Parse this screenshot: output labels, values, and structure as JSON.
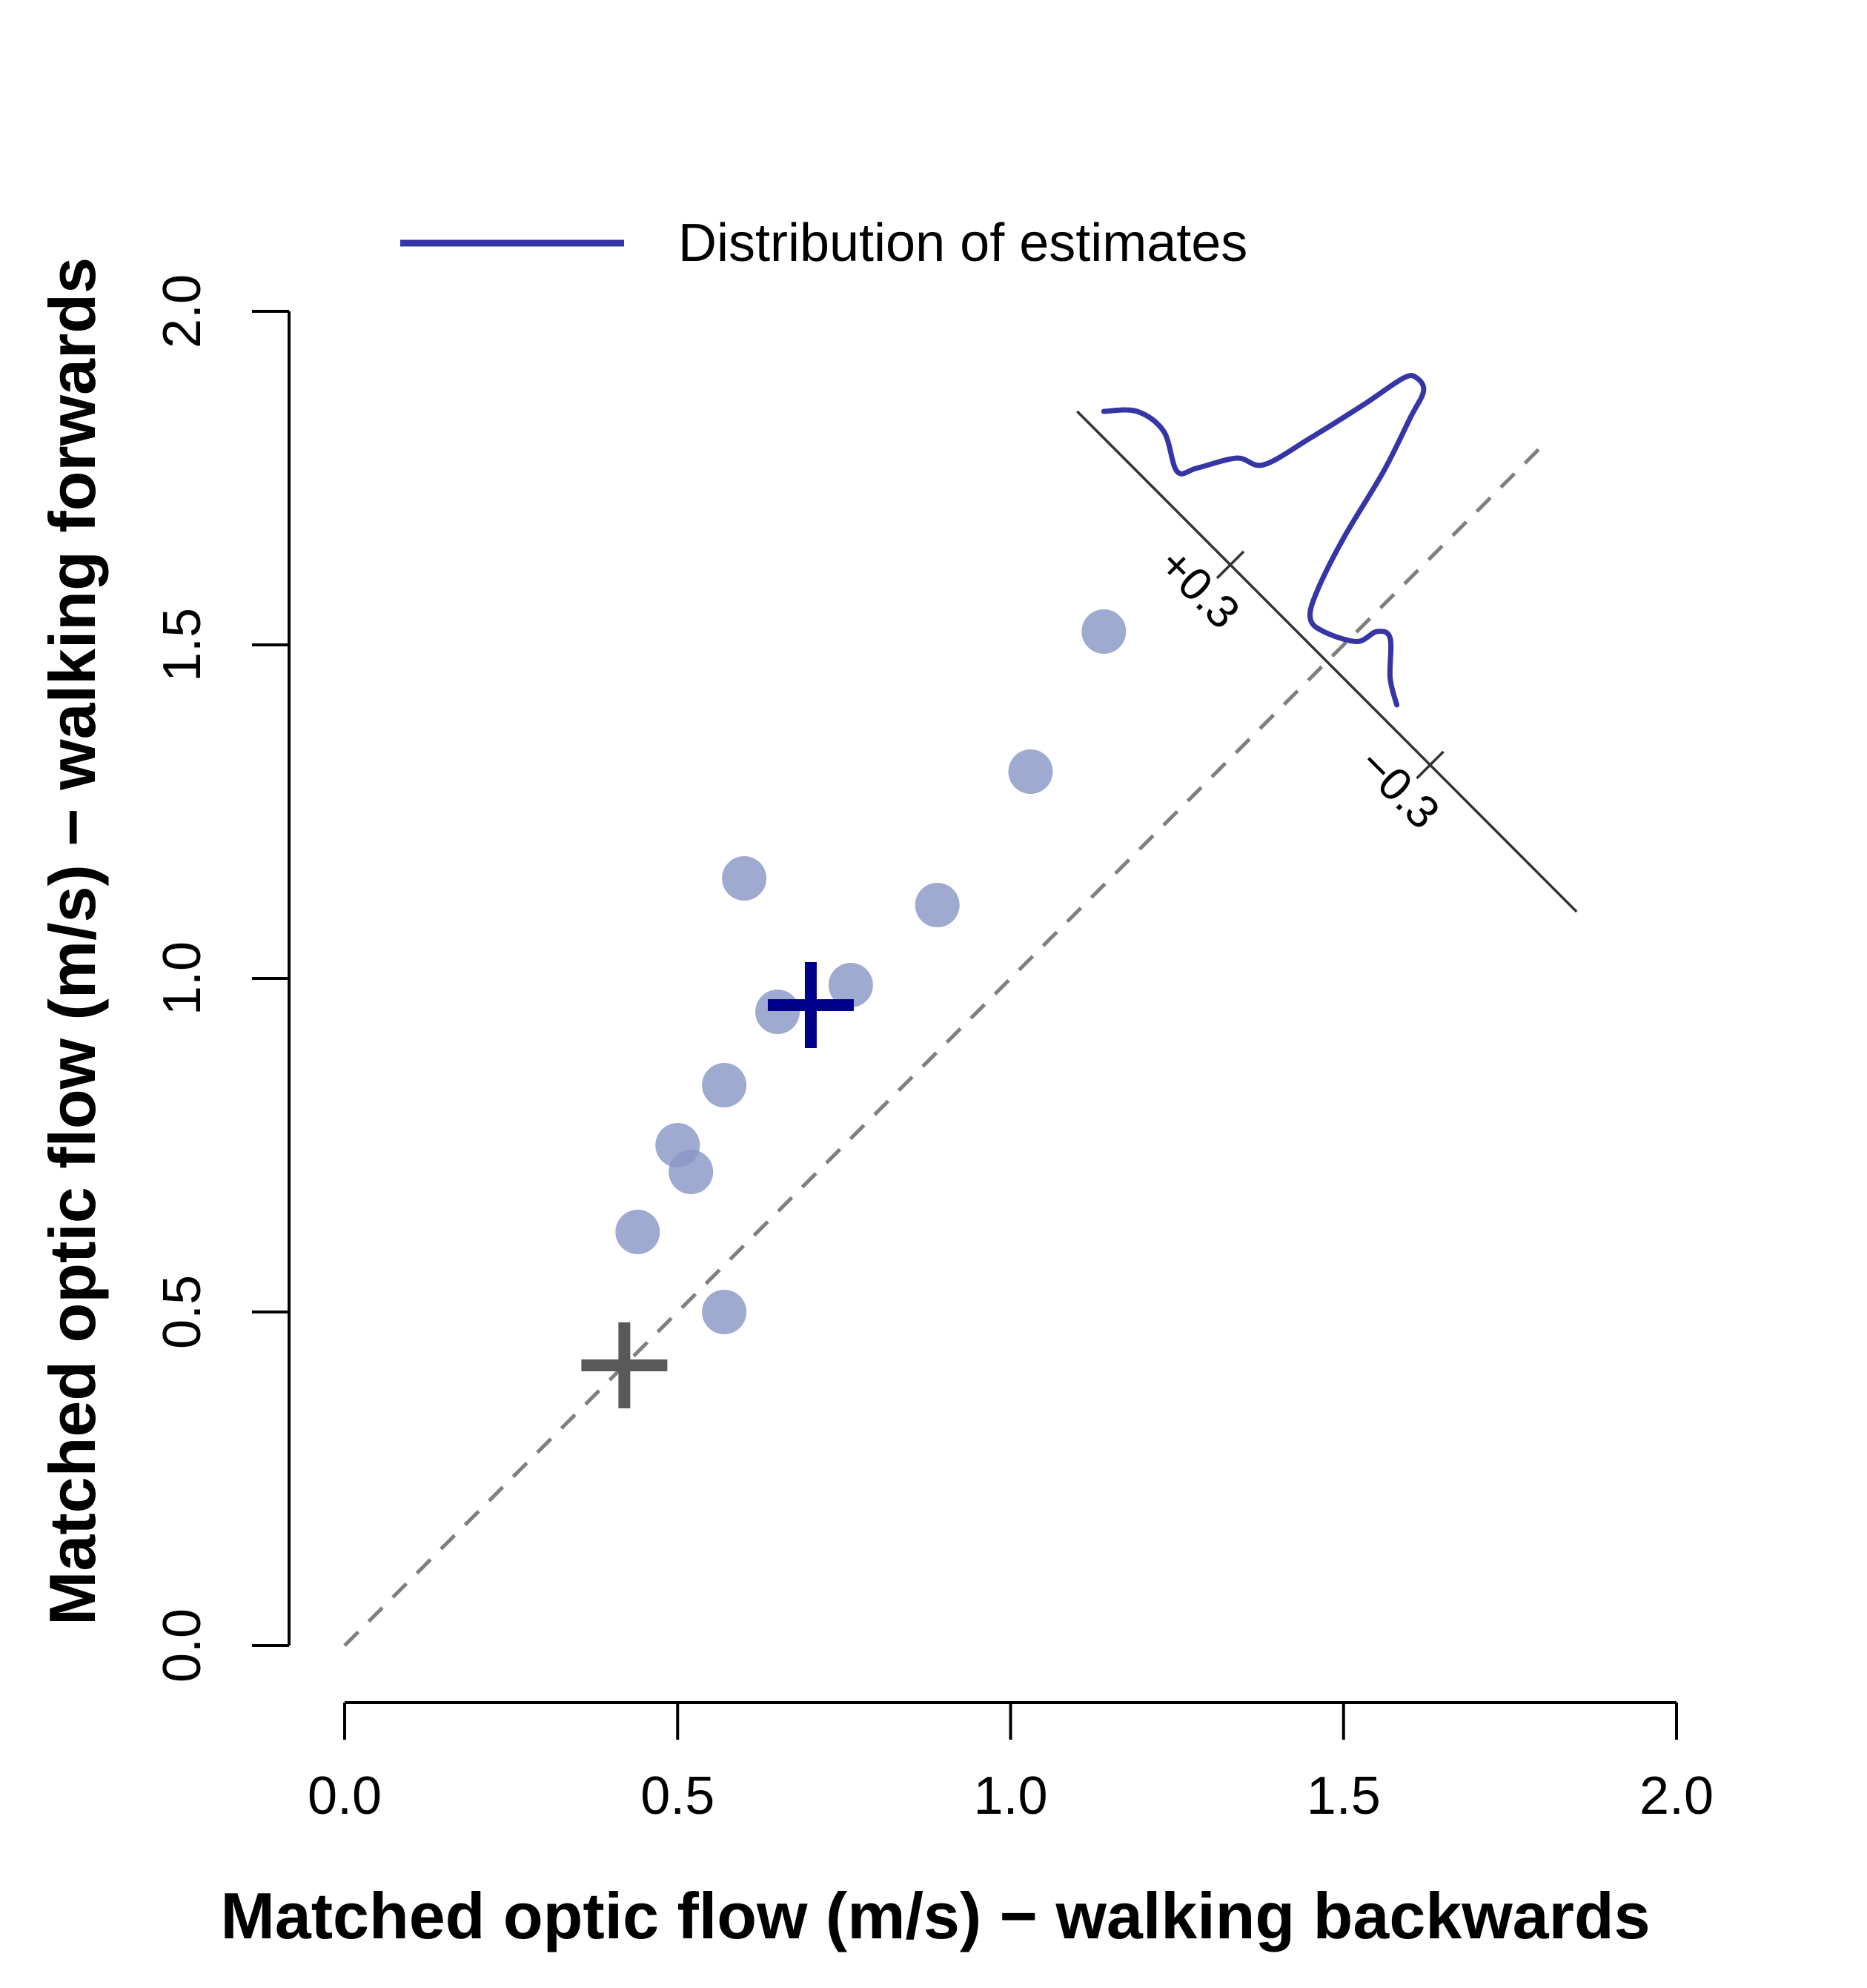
{
  "chart_data": {
    "type": "scatter",
    "xlabel": "Matched optic flow (m/s) − walking backwards",
    "ylabel": "Matched optic flow (m/s) − walking forwards",
    "xlim": [
      0,
      2
    ],
    "ylim": [
      0,
      2
    ],
    "x_ticks": [
      "0.0",
      "0.5",
      "1.0",
      "1.5",
      "2.0"
    ],
    "y_ticks": [
      "0.0",
      "0.5",
      "1.0",
      "1.5",
      "2.0"
    ],
    "grid": false,
    "legend": {
      "placement": "top",
      "entries": [
        {
          "label": "Distribution of estimates",
          "color": "#3535A6",
          "style": "line"
        }
      ]
    },
    "reference_line": {
      "style": "dashed",
      "color": "#7F7F7F",
      "from": [
        0,
        0
      ],
      "to": [
        1.8,
        1.8
      ]
    },
    "series": [
      {
        "marker": "circle",
        "color": "#8A97C6",
        "points": [
          {
            "x": 1.14,
            "y": 1.52
          },
          {
            "x": 1.03,
            "y": 1.31
          },
          {
            "x": 0.6,
            "y": 1.15
          },
          {
            "x": 0.89,
            "y": 1.11
          },
          {
            "x": 0.76,
            "y": 0.99
          },
          {
            "x": 0.65,
            "y": 0.95
          },
          {
            "x": 0.57,
            "y": 0.84
          },
          {
            "x": 0.5,
            "y": 0.75
          },
          {
            "x": 0.52,
            "y": 0.71
          },
          {
            "x": 0.44,
            "y": 0.62
          },
          {
            "x": 0.57,
            "y": 0.5
          }
        ]
      }
    ],
    "markers": [
      {
        "marker": "plus",
        "color": "#00008B",
        "x": 0.7,
        "y": 0.96
      },
      {
        "marker": "plus",
        "color": "#595959",
        "x": 0.42,
        "y": 0.42
      }
    ],
    "inset": {
      "axis_from": [
        1.1,
        1.85
      ],
      "axis_to": [
        1.85,
        1.1
      ],
      "ticks": [
        {
          "label": "+0.3",
          "x": 1.33,
          "y": 1.62
        },
        {
          "label": "−0.3",
          "x": 1.63,
          "y": 1.32
        }
      ],
      "density_color": "#3535A6",
      "density_curve": [
        [
          1.14,
          1.85
        ],
        [
          1.19,
          1.85
        ],
        [
          1.23,
          1.82
        ],
        [
          1.25,
          1.76
        ],
        [
          1.28,
          1.765
        ],
        [
          1.34,
          1.78
        ],
        [
          1.38,
          1.77
        ],
        [
          1.45,
          1.81
        ],
        [
          1.53,
          1.86
        ],
        [
          1.59,
          1.9
        ],
        [
          1.61,
          1.9
        ],
        [
          1.62,
          1.88
        ],
        [
          1.6,
          1.84
        ],
        [
          1.56,
          1.76
        ],
        [
          1.5,
          1.66
        ],
        [
          1.46,
          1.58
        ],
        [
          1.45,
          1.54
        ],
        [
          1.47,
          1.52
        ],
        [
          1.52,
          1.505
        ],
        [
          1.55,
          1.52
        ],
        [
          1.57,
          1.51
        ],
        [
          1.57,
          1.45
        ],
        [
          1.58,
          1.41
        ]
      ]
    }
  }
}
